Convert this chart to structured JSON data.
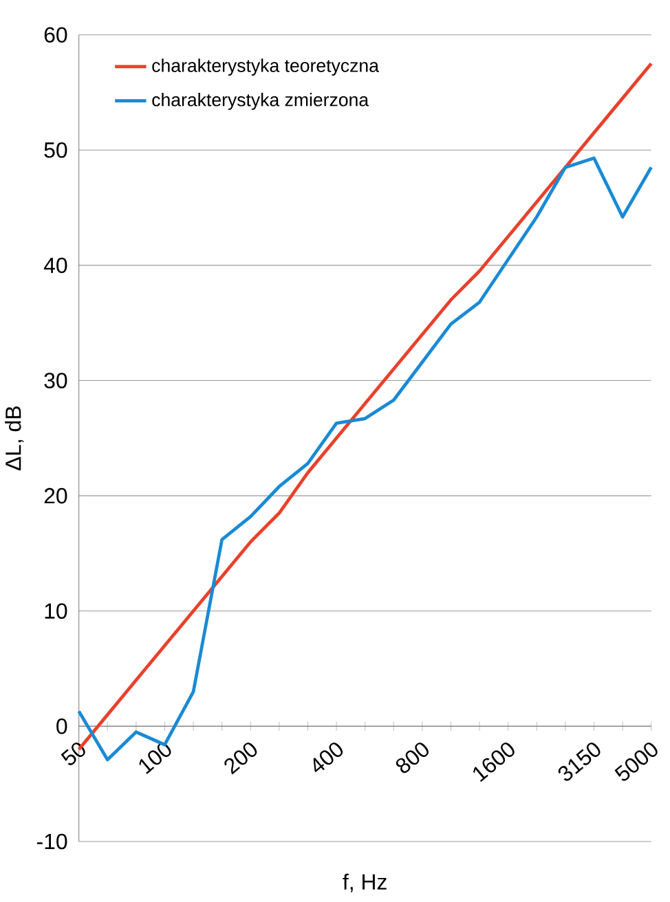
{
  "chart_data": {
    "type": "line",
    "xlabel": "f, Hz",
    "ylabel": "ΔL, dB",
    "categories": [
      "50",
      null,
      null,
      "100",
      null,
      null,
      "200",
      null,
      null,
      "400",
      null,
      null,
      "800",
      null,
      null,
      "1600",
      null,
      null,
      "3150",
      null,
      "5000"
    ],
    "series": [
      {
        "name": "charakterystyka teoretyczna",
        "color": "#e8412c",
        "values": [
          -2,
          1,
          4,
          7,
          10,
          13,
          16,
          18.5,
          22,
          25,
          28,
          31,
          34,
          37,
          39.5,
          42.5,
          45.5,
          48.5,
          51.5,
          54.5,
          57.5
        ]
      },
      {
        "name": "charakterystyka zmierzona",
        "color": "#1a8ad4",
        "values": [
          1.3,
          -2.9,
          -0.5,
          -1.6,
          3,
          16.2,
          18.2,
          20.8,
          22.8,
          26.3,
          26.7,
          28.3,
          31.6,
          34.9,
          36.8,
          40.5,
          44.2,
          48.5,
          49.3,
          44.2,
          48.5
        ]
      }
    ],
    "ylim": [
      -10,
      60
    ],
    "yticks": [
      -10,
      0,
      10,
      20,
      30,
      40,
      50,
      60
    ],
    "grid": "y",
    "legend": "top left",
    "line_style": "solid",
    "marker": "none"
  }
}
